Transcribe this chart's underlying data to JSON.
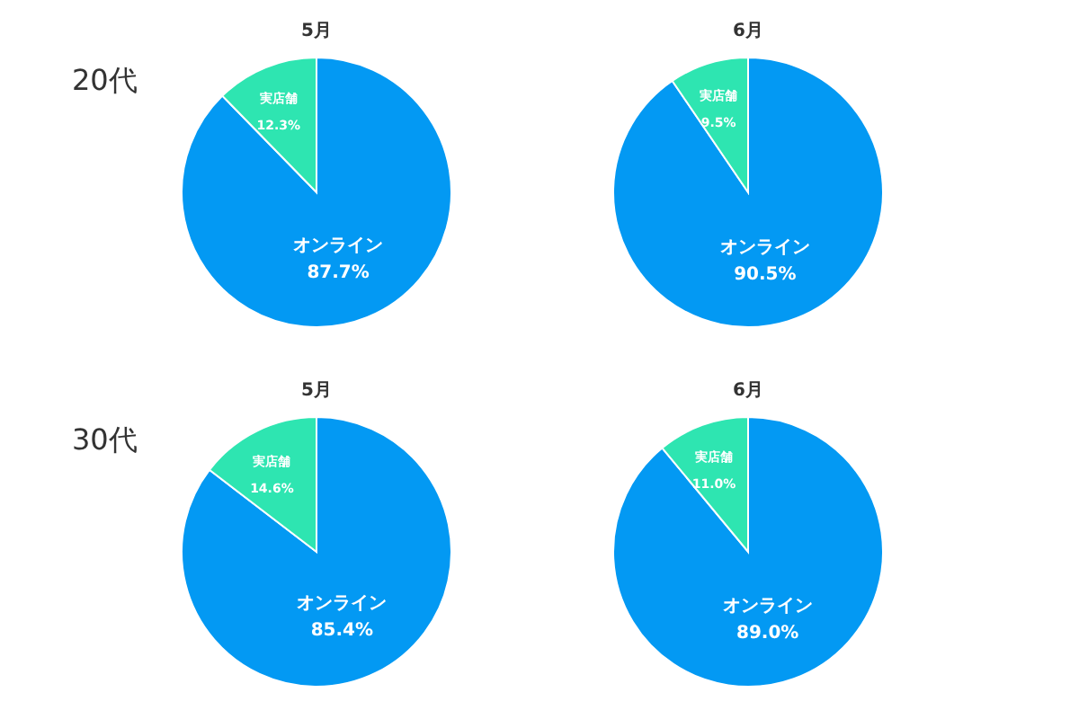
{
  "chart_data": [
    {
      "type": "pie",
      "title": "5月",
      "annotations": [
        "20代"
      ],
      "categories": [
        "オンライン",
        "実店舗"
      ],
      "values": [
        87.7,
        12.3
      ],
      "value_labels": [
        "87.7%",
        "12.3%"
      ],
      "colors": [
        "#0399f3",
        "#2ee5b1"
      ]
    },
    {
      "type": "pie",
      "title": "6月",
      "categories": [
        "オンライン",
        "実店舗"
      ],
      "values": [
        90.5,
        9.5
      ],
      "value_labels": [
        "90.5%",
        "9.5%"
      ],
      "colors": [
        "#0399f3",
        "#2ee5b1"
      ]
    },
    {
      "type": "pie",
      "title": "5月",
      "annotations": [
        "30代"
      ],
      "categories": [
        "オンライン",
        "実店舗"
      ],
      "values": [
        85.4,
        14.6
      ],
      "value_labels": [
        "85.4%",
        "14.6%"
      ],
      "colors": [
        "#0399f3",
        "#2ee5b1"
      ]
    },
    {
      "type": "pie",
      "title": "6月",
      "categories": [
        "オンライン",
        "実店舗"
      ],
      "values": [
        89.0,
        11.0
      ],
      "value_labels": [
        "89.0%",
        "11.0%"
      ],
      "colors": [
        "#0399f3",
        "#2ee5b1"
      ]
    }
  ]
}
